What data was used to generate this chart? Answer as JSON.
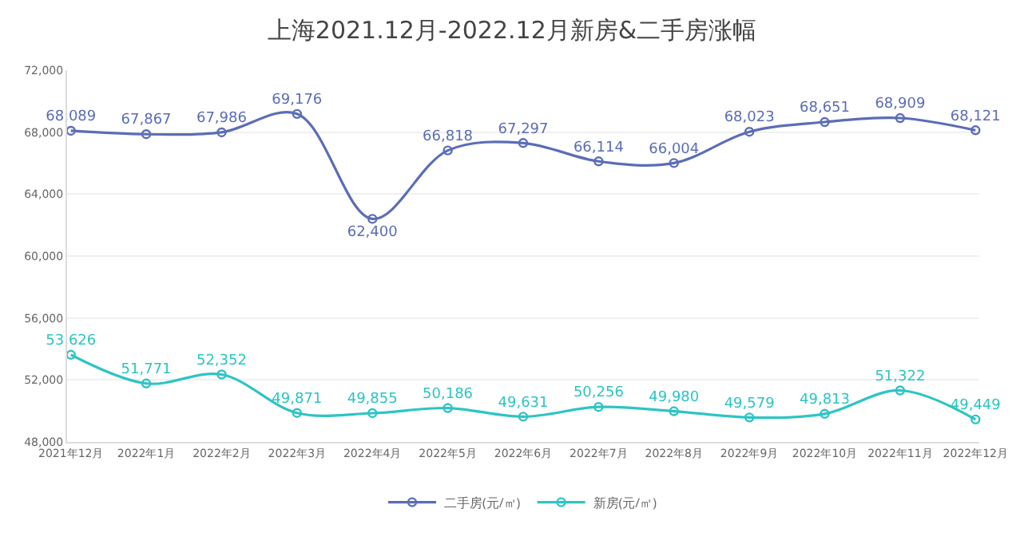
{
  "chart_data": {
    "type": "line",
    "title": "上海2021.12月-2022.12月新房&二手房涨幅",
    "categories": [
      "2021年12月",
      "2022年1月",
      "2022年2月",
      "2022年3月",
      "2022年4月",
      "2022年5月",
      "2022年6月",
      "2022年7月",
      "2022年8月",
      "2022年9月",
      "2022年10月",
      "2022年11月",
      "2022年12月"
    ],
    "series": [
      {
        "name": "二手房(元/㎡)",
        "color": "#5b6db8",
        "values": [
          68089,
          67867,
          67986,
          69176,
          62400,
          66818,
          67297,
          66114,
          66004,
          68023,
          68651,
          68909,
          68121
        ],
        "value_labels": [
          "68,089",
          "67,867",
          "67,986",
          "69,176",
          "62,400",
          "66,818",
          "67,297",
          "66,114",
          "66,004",
          "68,023",
          "68,651",
          "68,909",
          "68,121"
        ]
      },
      {
        "name": "新房(元/㎡)",
        "color": "#2ec4c4",
        "values": [
          53626,
          51771,
          52352,
          49871,
          49855,
          50186,
          49631,
          50256,
          49980,
          49579,
          49813,
          51322,
          49449
        ],
        "value_labels": [
          "53,626",
          "51,771",
          "52,352",
          "49,871",
          "49,855",
          "50,186",
          "49,631",
          "50,256",
          "49,980",
          "49,579",
          "49,813",
          "51,322",
          "49,449"
        ]
      }
    ],
    "ylim": [
      48000,
      72000
    ],
    "yticks": [
      {
        "value": 48000,
        "label": "48,000"
      },
      {
        "value": 52000,
        "label": "52,000"
      },
      {
        "value": 56000,
        "label": "56,000"
      },
      {
        "value": 60000,
        "label": "60,000"
      },
      {
        "value": 64000,
        "label": "64,000"
      },
      {
        "value": 68000,
        "label": "68,000"
      },
      {
        "value": 72000,
        "label": "72,000"
      }
    ],
    "grid": "y",
    "legend": "bottom",
    "marker": "circle",
    "line_style": "solid"
  }
}
